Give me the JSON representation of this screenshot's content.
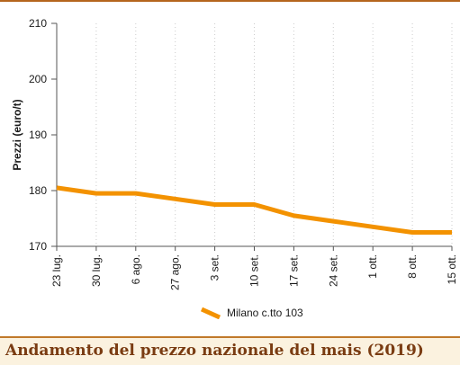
{
  "colors": {
    "series": "#f39200",
    "axis": "#555555",
    "grid": "#cccccc",
    "caption_text": "#7a3c12",
    "caption_bg": "#fbf2df"
  },
  "caption": {
    "title": "Andamento del prezzo nazionale del mais (2019)"
  },
  "chart_data": {
    "type": "line",
    "ylabel": "Prezzi (euro/t)",
    "xlabel": "",
    "ylim": [
      170,
      210
    ],
    "yticks": [
      170,
      180,
      190,
      200,
      210
    ],
    "grid": "vertical",
    "legend_position": "bottom-center",
    "categories": [
      "23 lug.",
      "30 lug.",
      "6 ago.",
      "27 ago.",
      "3 set.",
      "10 set.",
      "17 set.",
      "24 set.",
      "1 ott.",
      "8 ott.",
      "15 ott."
    ],
    "series": [
      {
        "name": "Milano  c.tto 103",
        "values": [
          180.5,
          179.5,
          179.5,
          178.5,
          177.5,
          177.5,
          175.5,
          174.5,
          173.5,
          172.5,
          172.5
        ]
      }
    ]
  }
}
